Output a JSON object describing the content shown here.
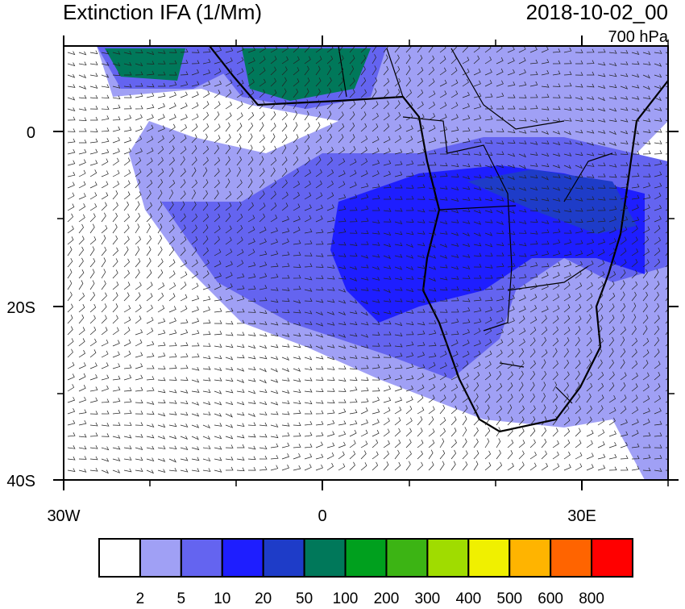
{
  "title": "Extinction IFA (1/Mm)",
  "date": "2018-10-02_00",
  "level": "700 hPa",
  "lat_labels": [
    "0",
    "20S",
    "40S"
  ],
  "lon_labels": [
    "30W",
    "0",
    "30E"
  ],
  "colorbar": {
    "colors": [
      "#ffffff",
      "#a0a0f5",
      "#6464f0",
      "#1e1eff",
      "#1e3cc8",
      "#00785a",
      "#00a01e",
      "#3cb414",
      "#a0dc00",
      "#f0f000",
      "#ffb400",
      "#ff6400",
      "#ff0000"
    ],
    "labels": [
      "2",
      "5",
      "10",
      "20",
      "50",
      "100",
      "200",
      "300",
      "400",
      "500",
      "600",
      "800"
    ]
  }
}
